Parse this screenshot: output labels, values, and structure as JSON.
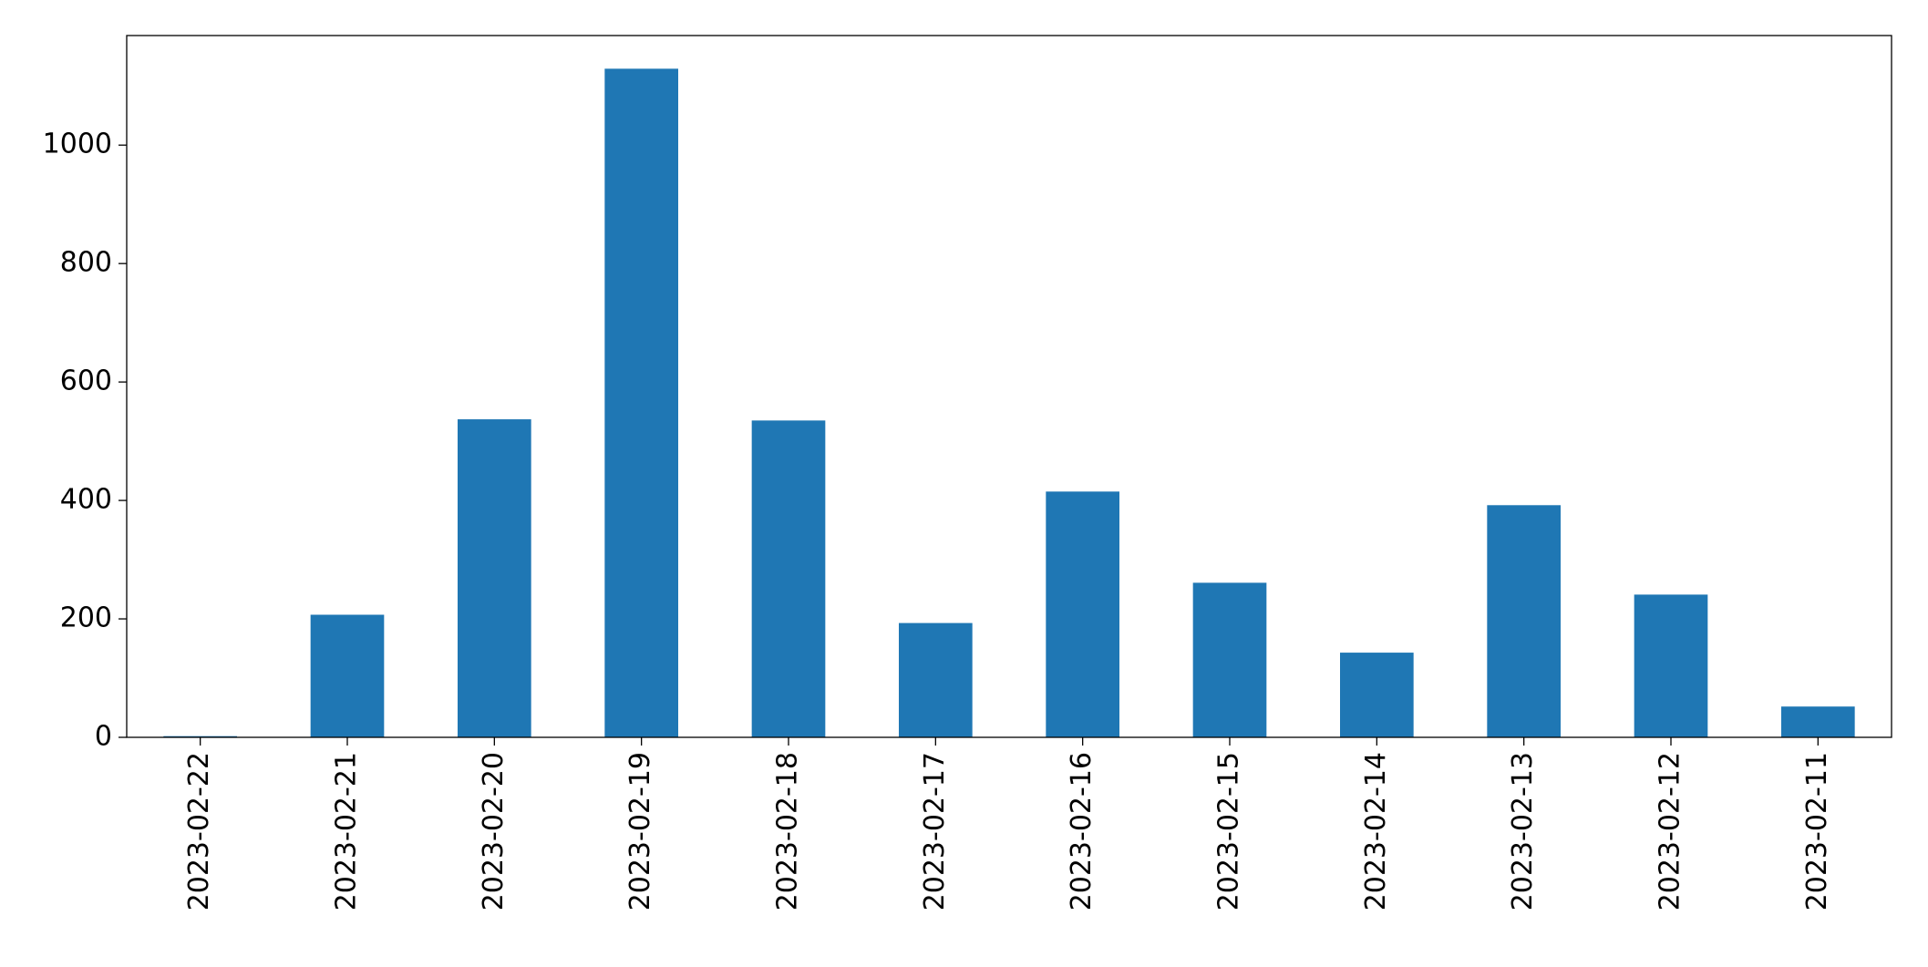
{
  "chart_data": {
    "type": "bar",
    "categories": [
      "2023-02-22",
      "2023-02-21",
      "2023-02-20",
      "2023-02-19",
      "2023-02-18",
      "2023-02-17",
      "2023-02-16",
      "2023-02-15",
      "2023-02-14",
      "2023-02-13",
      "2023-02-12",
      "2023-02-11"
    ],
    "values": [
      2,
      207,
      537,
      1129,
      535,
      193,
      415,
      261,
      143,
      392,
      241,
      52
    ],
    "color": "#1f77b4",
    "ylim": [
      0,
      1185
    ],
    "yticks": [
      0,
      200,
      400,
      600,
      800,
      1000
    ],
    "grid": false
  }
}
